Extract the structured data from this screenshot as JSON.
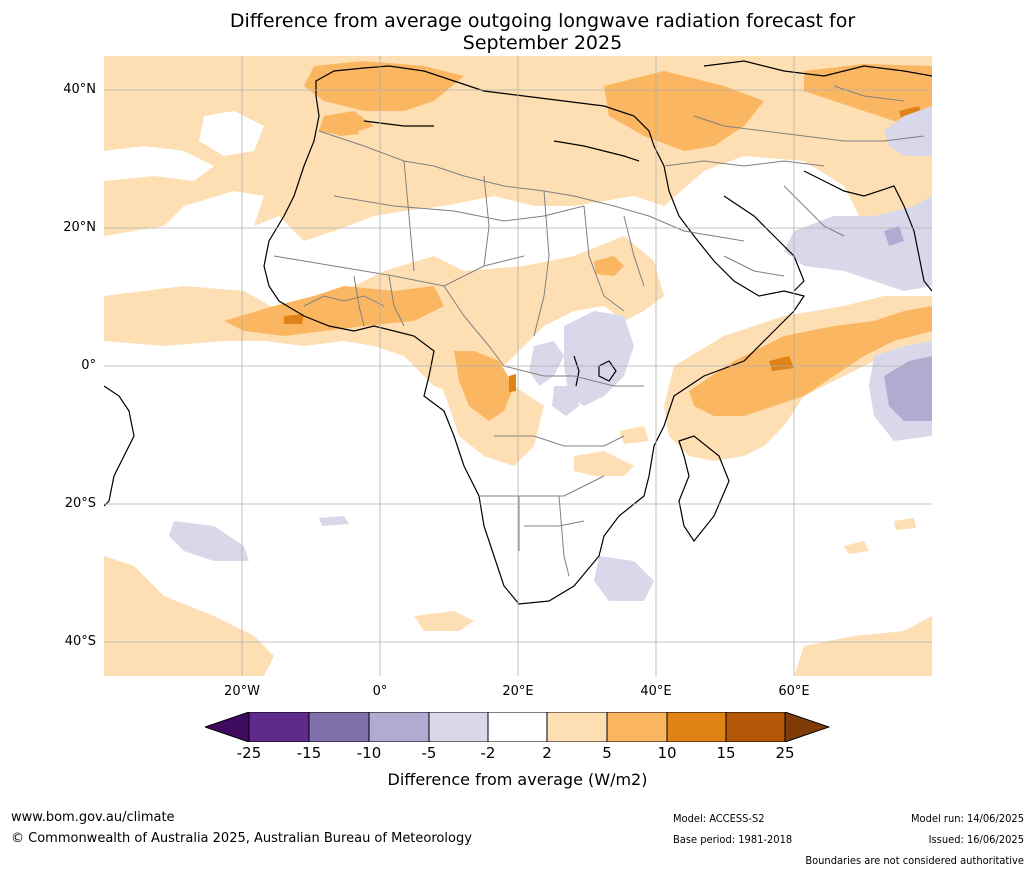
{
  "title_line1": "Difference from average outgoing longwave radiation forecast for",
  "title_line2": "September 2025",
  "lat_labels": [
    "40°N",
    "20°N",
    "0°",
    "20°S",
    "40°S"
  ],
  "lon_labels": [
    "20°W",
    "0°",
    "20°E",
    "40°E",
    "60°E"
  ],
  "colorbar": {
    "ticks": [
      "-25",
      "-15",
      "-10",
      "-5",
      "-2",
      "2",
      "5",
      "10",
      "15",
      "25"
    ],
    "colors": [
      "#3f0a5f",
      "#5e2a8b",
      "#8071ab",
      "#b1aad1",
      "#d9d8ea",
      "#ffffff",
      "#fddfb3",
      "#fbb661",
      "#e08215",
      "#b35807",
      "#7f3b08"
    ],
    "label": "Difference from average (W/m2)"
  },
  "footer": {
    "website": "www.bom.gov.au/climate",
    "copyright": "© Commonwealth of Australia 2025, Australian Bureau of Meteorology",
    "model": "Model: ACCESS-S2",
    "base_period": "Base period: 1981-2018",
    "model_run": "Model run: 14/06/2025",
    "issued": "Issued: 16/06/2025",
    "disclaimer": "Boundaries are not considered authoritative"
  }
}
